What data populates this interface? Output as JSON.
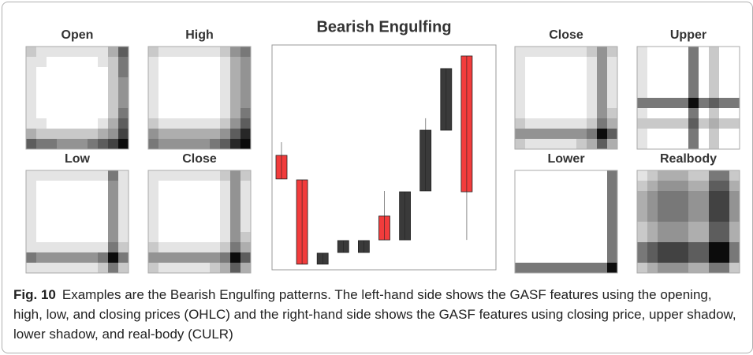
{
  "chart_data": [
    {
      "type": "heatmap",
      "title": "Open",
      "values": [
        [
          2,
          1,
          1,
          1,
          1,
          1,
          1,
          1,
          3,
          6
        ],
        [
          1,
          1,
          0,
          0,
          0,
          0,
          0,
          1,
          2,
          5
        ],
        [
          1,
          0,
          0,
          0,
          0,
          0,
          0,
          0,
          2,
          5
        ],
        [
          1,
          0,
          0,
          0,
          0,
          0,
          0,
          0,
          2,
          4
        ],
        [
          1,
          0,
          0,
          0,
          0,
          0,
          0,
          0,
          2,
          4
        ],
        [
          1,
          0,
          0,
          0,
          0,
          0,
          0,
          0,
          2,
          4
        ],
        [
          1,
          0,
          0,
          0,
          0,
          0,
          0,
          0,
          2,
          5
        ],
        [
          1,
          1,
          0,
          0,
          0,
          0,
          0,
          1,
          3,
          6
        ],
        [
          3,
          2,
          2,
          2,
          2,
          2,
          2,
          3,
          4,
          7
        ],
        [
          6,
          5,
          5,
          4,
          4,
          4,
          5,
          6,
          7,
          9
        ]
      ]
    },
    {
      "type": "heatmap",
      "title": "High",
      "values": [
        [
          2,
          1,
          1,
          1,
          1,
          1,
          1,
          2,
          4,
          5
        ],
        [
          1,
          0,
          0,
          0,
          0,
          0,
          0,
          1,
          3,
          4
        ],
        [
          1,
          0,
          0,
          0,
          0,
          0,
          0,
          1,
          3,
          4
        ],
        [
          1,
          0,
          0,
          0,
          0,
          0,
          0,
          1,
          3,
          4
        ],
        [
          1,
          0,
          0,
          0,
          0,
          0,
          0,
          1,
          3,
          4
        ],
        [
          1,
          0,
          0,
          0,
          0,
          0,
          0,
          1,
          3,
          4
        ],
        [
          1,
          0,
          0,
          0,
          0,
          0,
          0,
          1,
          3,
          5
        ],
        [
          2,
          1,
          1,
          1,
          1,
          1,
          1,
          2,
          4,
          6
        ],
        [
          4,
          3,
          3,
          3,
          3,
          3,
          3,
          4,
          6,
          8
        ],
        [
          5,
          4,
          4,
          4,
          4,
          4,
          5,
          6,
          8,
          9
        ]
      ]
    },
    {
      "type": "heatmap",
      "title": "Low",
      "values": [
        [
          1,
          1,
          1,
          1,
          1,
          1,
          1,
          1,
          5,
          1
        ],
        [
          1,
          0,
          0,
          0,
          0,
          0,
          0,
          0,
          4,
          1
        ],
        [
          1,
          0,
          0,
          0,
          0,
          0,
          0,
          0,
          4,
          1
        ],
        [
          1,
          0,
          0,
          0,
          0,
          0,
          0,
          0,
          4,
          1
        ],
        [
          1,
          0,
          0,
          0,
          0,
          0,
          0,
          0,
          4,
          1
        ],
        [
          1,
          0,
          0,
          0,
          0,
          0,
          0,
          0,
          4,
          1
        ],
        [
          1,
          0,
          0,
          0,
          0,
          0,
          0,
          0,
          4,
          1
        ],
        [
          1,
          1,
          1,
          1,
          1,
          1,
          1,
          1,
          5,
          2
        ],
        [
          5,
          4,
          4,
          4,
          4,
          4,
          4,
          5,
          9,
          5
        ],
        [
          1,
          1,
          1,
          1,
          1,
          1,
          1,
          2,
          5,
          2
        ]
      ]
    },
    {
      "type": "heatmap",
      "title": "Close",
      "values": [
        [
          1,
          1,
          1,
          1,
          1,
          1,
          1,
          2,
          4,
          2
        ],
        [
          1,
          0,
          0,
          0,
          0,
          0,
          0,
          1,
          4,
          1
        ],
        [
          1,
          0,
          0,
          0,
          0,
          0,
          0,
          1,
          4,
          1
        ],
        [
          1,
          0,
          0,
          0,
          0,
          0,
          0,
          1,
          4,
          1
        ],
        [
          1,
          0,
          0,
          0,
          0,
          0,
          0,
          1,
          4,
          1
        ],
        [
          1,
          0,
          0,
          0,
          0,
          0,
          0,
          1,
          4,
          1
        ],
        [
          1,
          0,
          0,
          0,
          0,
          0,
          0,
          1,
          4,
          2
        ],
        [
          2,
          1,
          1,
          1,
          1,
          1,
          1,
          2,
          5,
          3
        ],
        [
          4,
          4,
          4,
          4,
          4,
          4,
          4,
          5,
          9,
          6
        ],
        [
          2,
          1,
          1,
          1,
          1,
          1,
          2,
          3,
          6,
          3
        ]
      ]
    },
    {
      "type": "candlestick",
      "title": "Bearish Engulfing",
      "ylim": [
        0,
        100
      ],
      "up_color": "#3a3a3a",
      "down_color": "#f23c3c",
      "open": [
        50.9,
        40.0,
        2.5,
        7.7,
        7.7,
        23.9,
        13.3,
        35.1,
        62.1,
        95.1
      ],
      "high": [
        56.8,
        40.0,
        7.4,
        13.0,
        13.0,
        35.1,
        34.7,
        67.4,
        89.5,
        95.1
      ],
      "low": [
        40.4,
        2.5,
        2.5,
        7.7,
        7.7,
        13.3,
        13.3,
        35.1,
        62.1,
        13.3
      ],
      "close": [
        40.4,
        2.5,
        7.4,
        13.0,
        13.0,
        13.3,
        34.7,
        62.1,
        89.5,
        34.7
      ]
    },
    {
      "type": "heatmap",
      "title": "Close",
      "values": [
        [
          1,
          1,
          1,
          1,
          1,
          1,
          1,
          2,
          4,
          2
        ],
        [
          1,
          0,
          0,
          0,
          0,
          0,
          0,
          1,
          4,
          1
        ],
        [
          1,
          0,
          0,
          0,
          0,
          0,
          0,
          1,
          4,
          1
        ],
        [
          1,
          0,
          0,
          0,
          0,
          0,
          0,
          1,
          4,
          1
        ],
        [
          1,
          0,
          0,
          0,
          0,
          0,
          0,
          1,
          4,
          1
        ],
        [
          1,
          0,
          0,
          0,
          0,
          0,
          0,
          1,
          4,
          1
        ],
        [
          1,
          0,
          0,
          0,
          0,
          0,
          0,
          1,
          4,
          2
        ],
        [
          2,
          1,
          1,
          1,
          1,
          1,
          1,
          2,
          5,
          3
        ],
        [
          4,
          4,
          4,
          4,
          4,
          4,
          4,
          5,
          9,
          6
        ],
        [
          2,
          1,
          1,
          1,
          1,
          1,
          2,
          3,
          6,
          3
        ]
      ]
    },
    {
      "type": "heatmap",
      "title": "Upper",
      "values": [
        [
          1,
          0,
          0,
          0,
          0,
          5,
          0,
          2,
          0,
          0
        ],
        [
          1,
          0,
          0,
          0,
          0,
          5,
          0,
          2,
          0,
          0
        ],
        [
          1,
          0,
          0,
          0,
          0,
          5,
          0,
          2,
          0,
          0
        ],
        [
          1,
          0,
          0,
          0,
          0,
          5,
          0,
          2,
          0,
          0
        ],
        [
          1,
          0,
          0,
          0,
          0,
          5,
          0,
          2,
          0,
          0
        ],
        [
          5,
          5,
          5,
          5,
          5,
          9,
          5,
          6,
          5,
          5
        ],
        [
          1,
          0,
          0,
          0,
          0,
          5,
          0,
          2,
          0,
          0
        ],
        [
          2,
          2,
          2,
          2,
          2,
          6,
          2,
          3,
          2,
          2
        ],
        [
          1,
          0,
          0,
          0,
          0,
          5,
          0,
          2,
          0,
          0
        ],
        [
          1,
          0,
          0,
          0,
          0,
          5,
          0,
          2,
          0,
          0
        ]
      ]
    },
    {
      "type": "heatmap",
      "title": "Lower",
      "values": [
        [
          0,
          0,
          0,
          0,
          0,
          0,
          0,
          0,
          0,
          5
        ],
        [
          0,
          0,
          0,
          0,
          0,
          0,
          0,
          0,
          0,
          5
        ],
        [
          0,
          0,
          0,
          0,
          0,
          0,
          0,
          0,
          0,
          5
        ],
        [
          0,
          0,
          0,
          0,
          0,
          0,
          0,
          0,
          0,
          5
        ],
        [
          0,
          0,
          0,
          0,
          0,
          0,
          0,
          0,
          0,
          5
        ],
        [
          0,
          0,
          0,
          0,
          0,
          0,
          0,
          0,
          0,
          5
        ],
        [
          0,
          0,
          0,
          0,
          0,
          0,
          0,
          0,
          0,
          5
        ],
        [
          0,
          0,
          0,
          0,
          0,
          0,
          0,
          0,
          0,
          5
        ],
        [
          0,
          0,
          0,
          0,
          0,
          0,
          0,
          0,
          0,
          5
        ],
        [
          5,
          5,
          5,
          5,
          5,
          5,
          5,
          5,
          5,
          9
        ]
      ]
    },
    {
      "type": "heatmap",
      "title": "Realbody",
      "values": [
        [
          1,
          2,
          3,
          3,
          3,
          2,
          2,
          5,
          5,
          2
        ],
        [
          2,
          3,
          4,
          4,
          4,
          3,
          3,
          6,
          6,
          3
        ],
        [
          3,
          4,
          5,
          5,
          5,
          4,
          4,
          7,
          7,
          4
        ],
        [
          3,
          4,
          5,
          5,
          5,
          4,
          4,
          7,
          7,
          4
        ],
        [
          3,
          4,
          5,
          5,
          5,
          4,
          4,
          7,
          7,
          4
        ],
        [
          2,
          3,
          4,
          4,
          4,
          3,
          3,
          6,
          6,
          3
        ],
        [
          2,
          3,
          4,
          4,
          4,
          3,
          3,
          6,
          6,
          3
        ],
        [
          5,
          6,
          7,
          7,
          7,
          6,
          6,
          9,
          9,
          5
        ],
        [
          5,
          6,
          7,
          7,
          7,
          6,
          6,
          9,
          9,
          5
        ],
        [
          2,
          3,
          4,
          4,
          4,
          3,
          3,
          5,
          5,
          2
        ]
      ]
    }
  ],
  "caption": {
    "label": "Fig. 10",
    "text": "Examples are the Bearish Engulfing patterns. The left-hand side shows the GASF features using the opening, high, low, and closing prices (OHLC) and the right-hand side shows the GASF features using closing price, upper shadow, lower shadow, and real-body (CULR)"
  }
}
